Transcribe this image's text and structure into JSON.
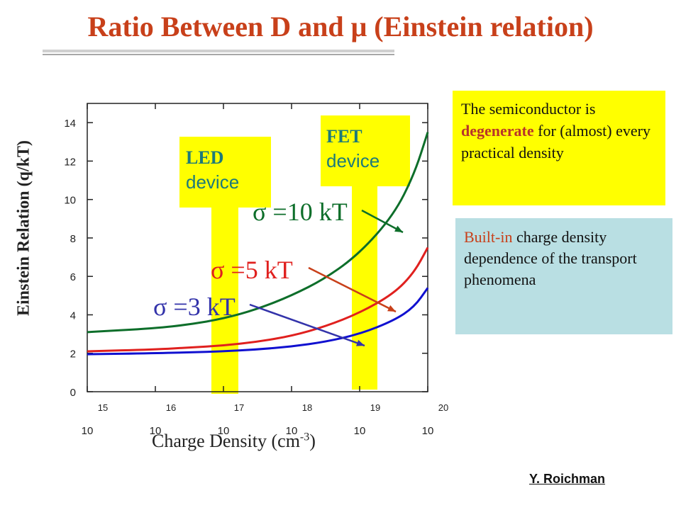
{
  "title": "Ratio Between D and μ (Einstein relation)",
  "credit": "Y. Roichman",
  "chart_data": {
    "type": "line",
    "xlabel": "Charge Density (cm-3)",
    "ylabel": "Einstein Relation (q/kT)",
    "x_scale": "log",
    "xlim": [
      15,
      20
    ],
    "ylim": [
      0,
      15
    ],
    "x_ticks": [
      15,
      16,
      17,
      18,
      19,
      20
    ],
    "x_tick_base": "10",
    "y_ticks": [
      0,
      2,
      4,
      6,
      8,
      10,
      12,
      14
    ],
    "series": [
      {
        "name": "σ =10 kT",
        "color": "#0d6e2a",
        "x": [
          15,
          16,
          16.5,
          17,
          17.5,
          18,
          18.5,
          19,
          19.5,
          19.8,
          20
        ],
        "y": [
          3.1,
          3.3,
          3.5,
          3.8,
          4.3,
          5.0,
          5.9,
          7.2,
          9.2,
          11.3,
          13.5
        ]
      },
      {
        "name": "σ =5 kT",
        "color": "#e0201e",
        "x": [
          15,
          16,
          16.5,
          17,
          17.5,
          18,
          18.5,
          19,
          19.5,
          19.8,
          20
        ],
        "y": [
          2.1,
          2.2,
          2.3,
          2.4,
          2.6,
          2.9,
          3.4,
          4.1,
          5.1,
          6.2,
          7.5
        ]
      },
      {
        "name": "σ =3 kT",
        "color": "#1010d0",
        "x": [
          15,
          16,
          16.5,
          17,
          17.5,
          18,
          18.5,
          19,
          19.5,
          19.8,
          20
        ],
        "y": [
          1.95,
          2.0,
          2.05,
          2.1,
          2.2,
          2.35,
          2.6,
          3.0,
          3.7,
          4.4,
          5.4
        ]
      }
    ]
  },
  "devices": {
    "led": {
      "line1": "LED",
      "line2": "device"
    },
    "fet": {
      "line1": "FET",
      "line2": "device"
    }
  },
  "note1": {
    "p1": "The semiconductor is",
    "p2": "degenerate",
    "p3": "for (almost) every practical density"
  },
  "note2": {
    "p1": "Built-in",
    "p2": "charge density dependence of the transport phenomena"
  }
}
